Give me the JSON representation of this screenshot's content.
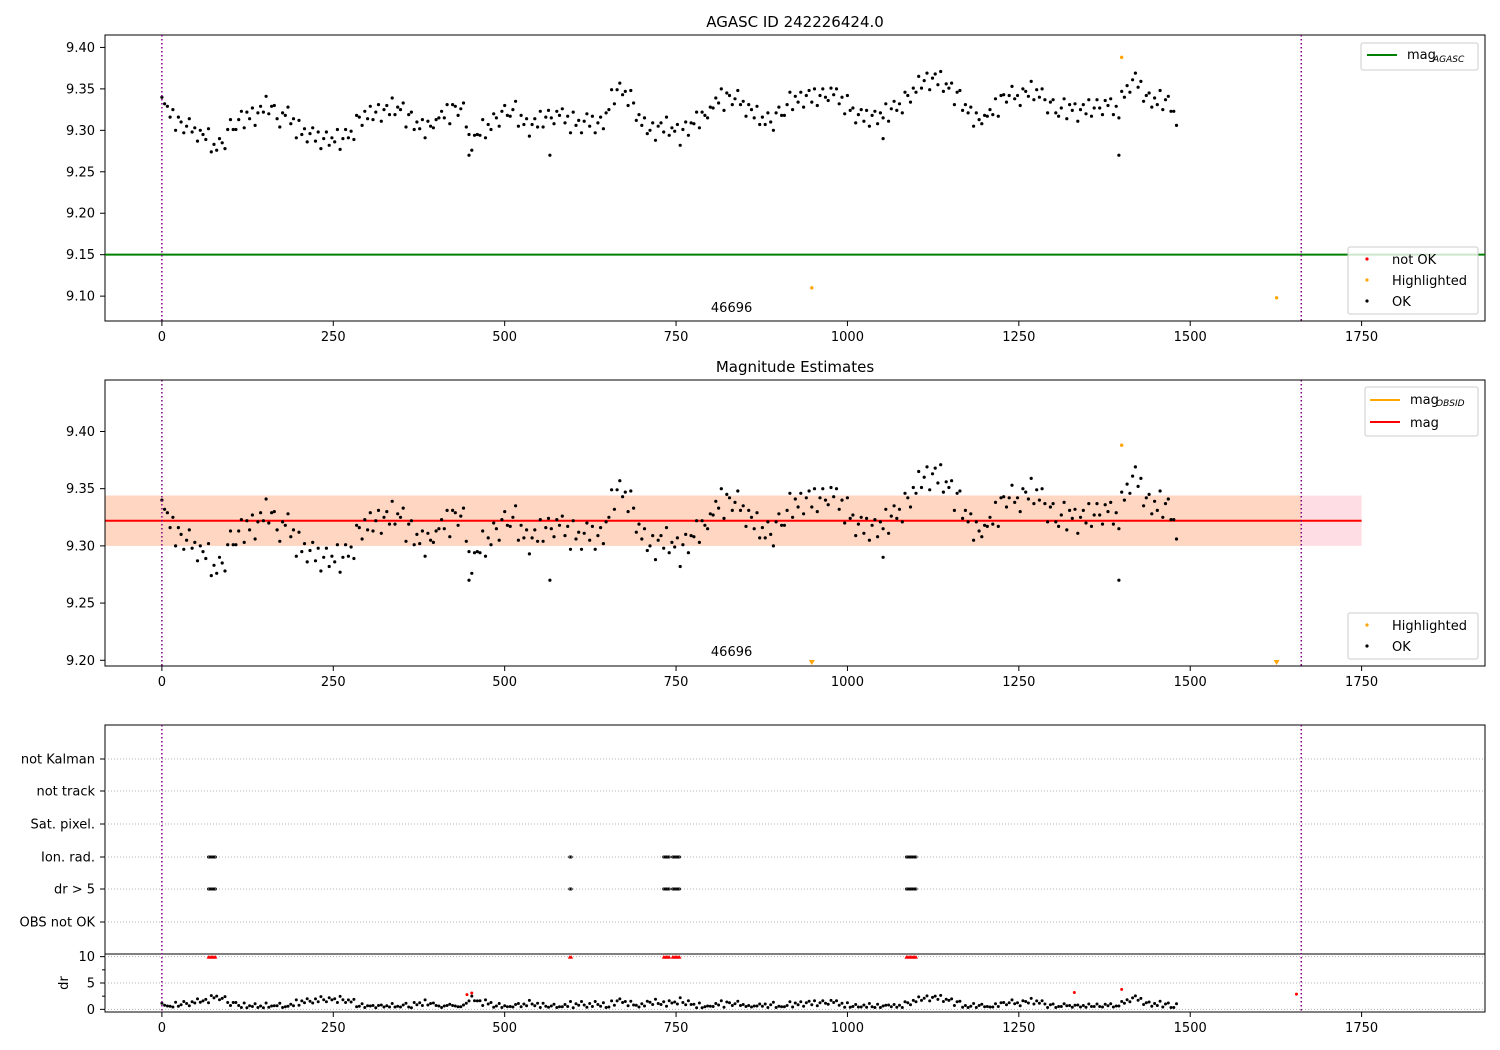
{
  "chart_data": [
    {
      "type": "scatter",
      "title": "AGASC ID 242226424.0",
      "xlim": [
        -83,
        1930
      ],
      "ylim": [
        9.07,
        9.415
      ],
      "xticks": [
        0,
        250,
        500,
        750,
        1000,
        1250,
        1500,
        1750
      ],
      "xtick_labels": [
        "0",
        "250",
        "500",
        "750",
        "1000",
        "1250",
        "1500",
        "1750"
      ],
      "yticks": [
        9.1,
        9.15,
        9.2,
        9.25,
        9.3,
        9.35,
        9.4
      ],
      "ytick_labels": [
        "9.10",
        "9.15",
        "9.20",
        "9.25",
        "9.30",
        "9.35",
        "9.40"
      ],
      "vlines": [
        0,
        1662
      ],
      "hline": {
        "name": "mag",
        "subscript": "AGASC",
        "y": 9.15,
        "color": "#008000"
      },
      "obsid_label": {
        "text": "46696",
        "x": 831
      },
      "legend_upper": "top-right",
      "legend_lower": "bottom-right",
      "legend_items": [
        {
          "label": "not OK",
          "color": "#ff0000"
        },
        {
          "label": "Highlighted",
          "color": "#ffa500"
        },
        {
          "label": "OK",
          "color": "#000000"
        }
      ],
      "ok_series": {
        "name": "OK",
        "x_start": 0,
        "x_step": 4,
        "y": [
          9.336,
          9.33,
          9.322,
          9.318,
          9.313,
          9.314,
          9.31,
          9.307,
          9.305,
          9.306,
          9.304,
          9.303,
          9.302,
          9.298,
          9.292,
          9.291,
          9.292,
          9.289,
          9.283,
          9.281,
          9.282,
          9.281,
          9.285,
          9.29,
          9.296,
          9.302,
          9.305,
          9.308,
          9.31,
          9.309,
          9.313,
          9.316,
          9.316,
          9.319,
          9.319,
          9.32,
          9.322,
          9.327,
          9.329,
          9.328,
          9.327,
          9.321,
          9.317,
          9.315,
          9.316,
          9.318,
          9.318,
          9.314,
          9.31,
          9.305,
          9.299,
          9.296,
          9.296,
          9.295,
          9.293,
          9.292,
          9.291,
          9.291,
          9.29,
          9.289,
          9.29,
          9.289,
          9.286,
          9.288,
          9.287,
          9.287,
          9.288,
          9.292,
          9.296,
          9.299,
          9.302,
          9.306,
          9.312,
          9.314,
          9.317,
          9.317,
          9.318,
          9.319,
          9.321,
          9.321,
          9.322,
          9.322,
          9.323,
          9.323,
          9.326,
          9.328,
          9.326,
          9.326,
          9.325,
          9.318,
          9.314,
          9.31,
          9.308,
          9.306,
          9.304,
          9.304,
          9.303,
          9.305,
          9.305,
          9.308,
          9.309,
          9.313,
          9.316,
          9.317,
          9.319,
          9.322,
          9.325,
          9.326,
          9.326,
          9.327,
          9.323,
          9.309,
          9.294,
          9.287,
          9.286,
          9.291,
          9.297,
          9.3,
          9.3,
          9.305,
          9.307,
          9.311,
          9.315,
          9.317,
          9.318,
          9.319,
          9.322,
          9.324,
          9.322,
          9.321,
          9.315,
          9.312,
          9.309,
          9.306,
          9.306,
          9.306,
          9.307,
          9.309,
          9.311,
          9.312,
          9.314,
          9.315,
          9.318,
          9.319,
          9.318,
          9.318,
          9.316,
          9.315,
          9.313,
          9.311,
          9.309,
          9.307,
          9.306,
          9.306,
          9.308,
          9.309,
          9.309,
          9.31,
          9.309,
          9.308,
          9.308,
          9.309,
          9.316,
          9.327,
          9.335,
          9.342,
          9.347,
          9.348,
          9.348,
          9.347,
          9.343,
          9.336,
          9.329,
          9.32,
          9.313,
          9.309,
          9.304,
          9.302,
          9.299,
          9.299,
          9.299,
          9.302,
          9.302,
          9.302,
          9.303,
          9.303,
          9.301,
          9.3,
          9.299,
          9.296,
          9.296,
          9.298,
          9.301,
          9.305,
          9.31,
          9.313,
          9.315,
          9.316,
          9.318,
          9.32,
          9.324,
          9.325,
          9.332,
          9.335,
          9.338,
          9.338,
          9.339,
          9.339,
          9.339,
          9.339,
          9.338,
          9.336,
          9.334,
          9.328,
          9.323,
          9.321,
          9.318,
          9.316,
          9.316,
          9.314,
          9.313,
          9.312,
          9.31,
          9.312,
          9.316,
          9.317,
          9.322,
          9.325,
          9.328,
          9.332,
          9.335,
          9.335,
          9.336,
          9.338,
          9.341,
          9.341,
          9.341,
          9.339,
          9.338,
          9.338,
          9.34,
          9.341,
          9.343,
          9.347,
          9.346,
          9.343,
          9.34,
          9.338,
          9.336,
          9.334,
          9.329,
          9.325,
          9.321,
          9.318,
          9.316,
          9.314,
          9.315,
          9.317,
          9.317,
          9.317,
          9.315,
          9.315,
          9.316,
          9.317,
          9.318,
          9.321,
          9.324,
          9.326,
          9.329,
          9.332,
          9.334,
          9.334,
          9.338,
          9.342,
          9.345,
          9.349,
          9.354,
          9.357,
          9.359,
          9.359,
          9.36,
          9.36,
          9.361,
          9.359,
          9.358,
          9.356,
          9.354,
          9.352,
          9.349,
          9.345,
          9.341,
          9.336,
          9.331,
          9.327,
          9.323,
          9.319,
          9.317,
          9.315,
          9.313,
          9.313,
          9.314,
          9.315,
          9.318,
          9.321,
          9.326,
          9.331,
          9.336,
          9.34,
          9.342,
          9.343,
          9.343,
          9.343,
          9.341,
          9.341,
          9.342,
          9.343,
          9.344,
          9.346,
          9.346,
          9.347,
          9.346,
          9.341,
          9.337,
          9.333,
          9.329,
          9.326,
          9.325,
          9.324,
          9.324,
          9.324,
          9.324,
          9.325,
          9.326,
          9.324,
          9.324,
          9.324,
          9.324,
          9.325,
          9.325,
          9.325,
          9.325,
          9.328,
          9.33,
          9.33,
          9.331,
          9.33,
          9.328,
          9.325,
          9.325,
          9.329,
          9.334,
          9.341,
          9.348,
          9.355,
          9.358,
          9.358,
          9.356,
          9.352,
          9.347,
          9.341,
          9.337,
          9.335,
          9.334,
          9.333,
          9.334,
          9.335,
          9.335,
          9.332,
          9.328,
          9.323,
          9.319
        ],
        "jitter": [
          0.004,
          0.002,
          0.007,
          -0.002,
          0.012,
          -0.014,
          0.006,
          0.003,
          -0.008,
          -0.001,
          0.01,
          -0.005,
          0.001,
          -0.011,
          0.008,
          0.004,
          -0.003,
          0.013,
          -0.009,
          0.002,
          -0.006,
          0.009,
          0.0,
          -0.012,
          0.005,
          0.011,
          -0.004,
          -0.007,
          0.003,
          0.014,
          -0.01,
          0.006,
          -0.002,
          0.008,
          -0.013,
          0.001,
          0.007,
          -0.005,
          0.012,
          -0.008,
          0.002,
          0.009,
          -0.003,
          -0.011,
          0.005,
          0.0,
          0.01,
          -0.006,
          0.004,
          -0.014,
          0.013,
          -0.001,
          0.006,
          -0.009,
          0.003,
          0.011,
          -0.004,
          0.007,
          -0.012,
          0.001,
          0.008,
          -0.007,
          0.005,
          -0.002,
          0.014,
          -0.01,
          0.002,
          0.009,
          -0.005,
          0.0,
          -0.013,
          0.012,
          0.004,
          -0.008,
          0.006,
          -0.003,
          0.011,
          -0.006,
          0.001,
          0.01,
          -0.011,
          0.003,
          0.007,
          -0.004,
          0.013,
          -0.009,
          0.002,
          -0.001,
          0.008,
          -0.014,
          0.005,
          0.012,
          -0.007,
          0.004,
          -0.002,
          0.009,
          -0.012,
          0.006,
          0.0,
          -0.005
        ]
      },
      "highlighted": [
        {
          "x": 948,
          "y": 9.11
        },
        {
          "x": 1400,
          "y": 9.388
        },
        {
          "x": 1626,
          "y": 9.098
        }
      ],
      "outliers": [
        {
          "x": 566,
          "y": 9.27
        },
        {
          "x": 1396,
          "y": 9.27
        },
        {
          "x": 1052,
          "y": 9.29
        },
        {
          "x": 448,
          "y": 9.27
        }
      ]
    },
    {
      "type": "scatter",
      "title": "Magnitude Estimates",
      "xlim": [
        -83,
        1930
      ],
      "ylim": [
        9.195,
        9.445
      ],
      "xticks": [
        0,
        250,
        500,
        750,
        1000,
        1250,
        1500,
        1750
      ],
      "xtick_labels": [
        "0",
        "250",
        "500",
        "750",
        "1000",
        "1250",
        "1500",
        "1750"
      ],
      "yticks": [
        9.2,
        9.25,
        9.3,
        9.35,
        9.4
      ],
      "ytick_labels": [
        "9.20",
        "9.25",
        "9.30",
        "9.35",
        "9.40"
      ],
      "vlines": [
        0,
        1662
      ],
      "mag_line": {
        "name": "mag",
        "y": 9.322,
        "color": "#ff0000"
      },
      "band_pink": {
        "x0": -83,
        "x1": 1750,
        "y0": 9.3,
        "y1": 9.344,
        "color": "#ffdde4"
      },
      "band_orange": {
        "x0": -83,
        "x1": 1662,
        "y0": 9.3,
        "y1": 9.344,
        "color": "#ffd6c2"
      },
      "obsid_label": {
        "text": "46696",
        "x": 831
      },
      "legend_upper": "top-right",
      "legend_lower": "bottom-right",
      "legend_lines": [
        {
          "label": "mag",
          "subscript": "OBSID",
          "color": "#ffa500"
        },
        {
          "label": "mag",
          "subscript": "",
          "color": "#ff0000"
        }
      ],
      "legend_items": [
        {
          "label": "Highlighted",
          "color": "#ffa500"
        },
        {
          "label": "OK",
          "color": "#000000"
        }
      ],
      "highlighted": [
        {
          "x": 1400,
          "y": 9.388
        }
      ],
      "clipped_markers": [
        {
          "x": 948
        },
        {
          "x": 1626
        }
      ]
    },
    {
      "type": "scatter",
      "title": "",
      "xlim": [
        -83,
        1930
      ],
      "xticks": [
        0,
        250,
        500,
        750,
        1000,
        1250,
        1500,
        1750
      ],
      "xtick_labels": [
        "0",
        "250",
        "500",
        "750",
        "1000",
        "1250",
        "1500",
        "1750"
      ],
      "vlines": [
        0,
        1662
      ],
      "flag_rows": [
        "not Kalman",
        "not track",
        "Sat. pixel.",
        "Ion. rad.",
        "dr > 5",
        "OBS not OK"
      ],
      "flag_points": {
        "Ion. rad.": [
          [
            68,
            78
          ],
          [
            595,
            597
          ],
          [
            732,
            740
          ],
          [
            745,
            755
          ],
          [
            1086,
            1100
          ]
        ],
        "dr > 5": [
          [
            68,
            78
          ],
          [
            595,
            597
          ],
          [
            732,
            740
          ],
          [
            745,
            755
          ],
          [
            1086,
            1100
          ]
        ]
      },
      "dr_axis": {
        "ylabel": "dr",
        "ylim": [
          -0.5,
          10.5
        ],
        "yticks": [
          0,
          5,
          10
        ],
        "ytick_labels": [
          "0",
          "5",
          "10"
        ],
        "clipped_red": [
          [
            68,
            78
          ],
          [
            595,
            597
          ],
          [
            732,
            740
          ],
          [
            745,
            755
          ],
          [
            1086,
            1100
          ]
        ],
        "red_points": [
          {
            "x": 445,
            "y": 2.8
          },
          {
            "x": 452,
            "y": 3.1
          },
          {
            "x": 1331,
            "y": 3.2
          },
          {
            "x": 1400,
            "y": 3.8
          },
          {
            "x": 1655,
            "y": 2.9
          }
        ]
      }
    }
  ]
}
